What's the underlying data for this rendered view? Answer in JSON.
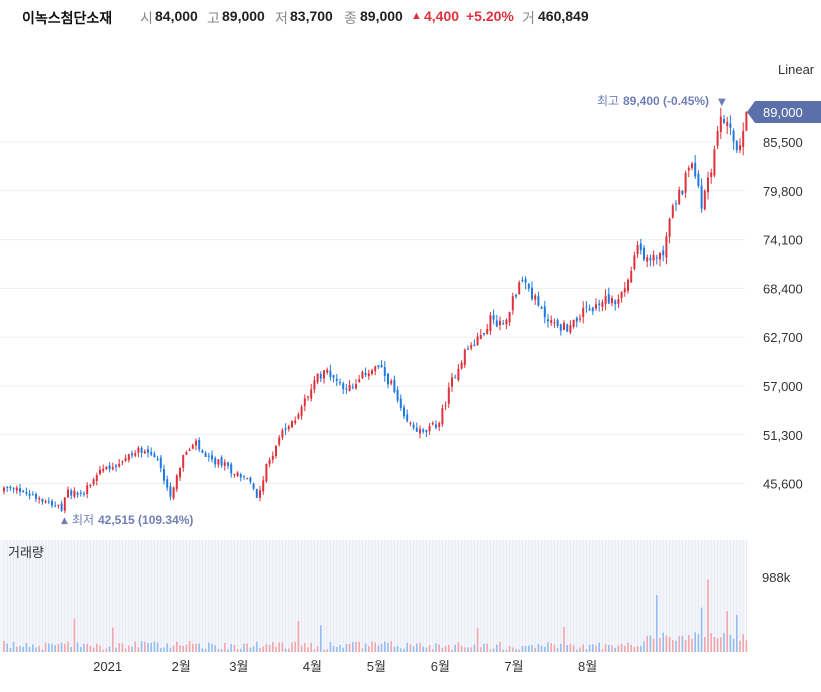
{
  "header": {
    "stock_name": "이녹스첨단소재",
    "open_label": "시",
    "open_value": "84,000",
    "high_label": "고",
    "high_value": "89,000",
    "low_label": "저",
    "low_value": "83,700",
    "close_label": "종",
    "close_value": "89,000",
    "change_arrow": "▲",
    "change_value": "4,400",
    "change_pct": "+5.20%",
    "volume_label": "거",
    "volume_value": "460,849"
  },
  "scale_mode": "Linear",
  "volume_panel_label": "거래량",
  "colors": {
    "up": "#e0313b",
    "down": "#1f7ae0",
    "last_price_bg": "#5b6fa8",
    "annotation": "#6f7fb5"
  },
  "chart_data": {
    "type": "candlestick",
    "title": "",
    "y_ticks": [
      "89,000",
      "85,500",
      "79,800",
      "74,100",
      "68,400",
      "62,700",
      "57,000",
      "51,300",
      "45,600"
    ],
    "y_tick_values": [
      89000,
      85500,
      79800,
      74100,
      68400,
      62700,
      57000,
      51300,
      45600
    ],
    "x_ticks": [
      "2021",
      "2월",
      "3월",
      "4월",
      "5월",
      "6월",
      "7월",
      "8월"
    ],
    "last_price": "89,000",
    "max_annotation": {
      "label": "최고",
      "value": "89,400 (-0.45%)",
      "price": 89400
    },
    "min_annotation": {
      "label": "최저",
      "value": "42,515 (109.34%)",
      "price": 42515
    },
    "volume_tick": "988k",
    "price_path": [
      [
        0,
        45000
      ],
      [
        5,
        44800
      ],
      [
        11,
        44000
      ],
      [
        15,
        43400
      ],
      [
        18,
        42515
      ],
      [
        20,
        44600
      ],
      [
        24,
        44300
      ],
      [
        30,
        47200
      ],
      [
        35,
        47900
      ],
      [
        40,
        49000
      ],
      [
        44,
        49800
      ],
      [
        48,
        48200
      ],
      [
        52,
        44300
      ],
      [
        56,
        48800
      ],
      [
        60,
        50200
      ],
      [
        63,
        48400
      ],
      [
        68,
        48000
      ],
      [
        72,
        46900
      ],
      [
        76,
        46300
      ],
      [
        79,
        44000
      ],
      [
        82,
        47500
      ],
      [
        86,
        51000
      ],
      [
        90,
        52600
      ],
      [
        94,
        55300
      ],
      [
        98,
        58000
      ],
      [
        101,
        58800
      ],
      [
        105,
        57300
      ],
      [
        109,
        56600
      ],
      [
        113,
        58600
      ],
      [
        117,
        59200
      ],
      [
        121,
        57200
      ],
      [
        125,
        53000
      ],
      [
        128,
        52200
      ],
      [
        131,
        51400
      ],
      [
        136,
        52800
      ],
      [
        140,
        57600
      ],
      [
        144,
        61000
      ],
      [
        148,
        62300
      ],
      [
        152,
        64800
      ],
      [
        156,
        64200
      ],
      [
        159,
        67200
      ],
      [
        162,
        69500
      ],
      [
        165,
        67700
      ],
      [
        168,
        65600
      ],
      [
        172,
        64200
      ],
      [
        176,
        63800
      ],
      [
        180,
        65400
      ],
      [
        184,
        66000
      ],
      [
        188,
        67200
      ],
      [
        192,
        67000
      ],
      [
        195,
        69200
      ],
      [
        198,
        73000
      ],
      [
        202,
        71600
      ],
      [
        206,
        72900
      ],
      [
        209,
        77900
      ],
      [
        212,
        80000
      ],
      [
        215,
        83600
      ],
      [
        218,
        77800
      ],
      [
        221,
        82600
      ],
      [
        224,
        88500
      ],
      [
        227,
        86500
      ],
      [
        230,
        84500
      ],
      [
        232,
        89000
      ]
    ],
    "volume_spikes": [
      [
        22,
        0.45
      ],
      [
        34,
        0.33
      ],
      [
        92,
        0.42
      ],
      [
        99,
        0.36
      ],
      [
        148,
        0.32
      ],
      [
        175,
        0.34
      ],
      [
        204,
        0.77
      ],
      [
        218,
        0.6
      ],
      [
        220,
        0.98
      ],
      [
        226,
        0.55
      ],
      [
        229,
        0.5
      ]
    ]
  }
}
